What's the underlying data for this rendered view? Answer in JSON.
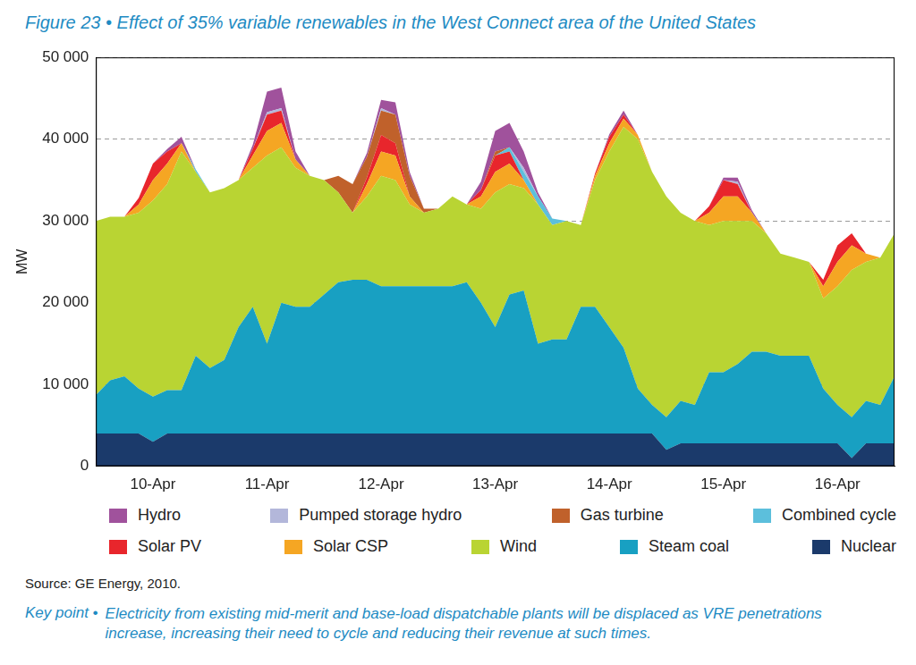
{
  "chart_data": {
    "type": "area",
    "title": "Figure 23 • Effect of 35% variable renewables in the West Connect area of the United States",
    "y_label": "MW",
    "source": "Source: GE Energy, 2010.",
    "note_label": "Key point •",
    "note": "Electricity from existing mid-merit and base-load dispatchable plants will be displaced as VRE penetrations increase, increasing their need to cycle and reducing their revenue at such times.",
    "stacked": true,
    "grid": true,
    "legend": "bottom",
    "ylim": [
      0,
      50000
    ],
    "yticks": [
      0,
      {
        "value": 10000,
        "label": "10 000"
      },
      {
        "value": 20000,
        "label": "20 000"
      },
      {
        "value": 30000,
        "label": "30 000"
      },
      {
        "value": 40000,
        "label": "40 000"
      },
      {
        "value": 50000,
        "label": "50 000"
      }
    ],
    "categories": [
      null,
      null,
      null,
      null,
      "10-Apr",
      null,
      null,
      null,
      null,
      null,
      null,
      null,
      "11-Apr",
      null,
      null,
      null,
      null,
      null,
      null,
      null,
      "12-Apr",
      null,
      null,
      null,
      null,
      null,
      null,
      null,
      "13-Apr",
      null,
      null,
      null,
      null,
      null,
      null,
      null,
      "14-Apr",
      null,
      null,
      null,
      null,
      null,
      null,
      null,
      "15-Apr",
      null,
      null,
      null,
      null,
      null,
      null,
      null,
      "16-Apr",
      null,
      null,
      null,
      null
    ],
    "series": [
      {
        "name": "Hydro",
        "color": "#a0529c",
        "values": [
          0,
          0,
          0,
          0,
          0,
          300,
          800,
          0,
          0,
          0,
          0,
          500,
          2500,
          2500,
          1000,
          0,
          0,
          0,
          0,
          500,
          1000,
          1500,
          500,
          0,
          0,
          0,
          0,
          1000,
          2500,
          3000,
          2000,
          500,
          0,
          0,
          0,
          0,
          300,
          500,
          0,
          0,
          0,
          0,
          0,
          0,
          300,
          500,
          300,
          0,
          0,
          0,
          0,
          0,
          0,
          0,
          0,
          0,
          0
        ]
      },
      {
        "name": "Pumped storage hydro",
        "color": "#b3b7da",
        "values": [
          0,
          0,
          0,
          0,
          0,
          0,
          0,
          0,
          0,
          0,
          0,
          0,
          300,
          300,
          0,
          0,
          0,
          0,
          0,
          0,
          300,
          0,
          0,
          0,
          0,
          0,
          0,
          0,
          0,
          0,
          500,
          0,
          0,
          0,
          0,
          0,
          0,
          0,
          0,
          0,
          0,
          0,
          0,
          0,
          0,
          300,
          0,
          0,
          0,
          0,
          0,
          0,
          0,
          0,
          0,
          0,
          0
        ]
      },
      {
        "name": "Gas turbine",
        "color": "#c0612b",
        "values": [
          0,
          0,
          0,
          0,
          0,
          0,
          0,
          0,
          0,
          0,
          0,
          0,
          0,
          0,
          0,
          0,
          0,
          2000,
          3500,
          2500,
          3000,
          3500,
          2500,
          500,
          0,
          0,
          0,
          0,
          500,
          0,
          0,
          0,
          0,
          0,
          0,
          0,
          0,
          0,
          0,
          0,
          0,
          0,
          0,
          0,
          0,
          0,
          0,
          0,
          0,
          0,
          0,
          0,
          0,
          0,
          0,
          0,
          0
        ]
      },
      {
        "name": "Combined cycle",
        "color": "#5cbfdc",
        "values": [
          0,
          0,
          0,
          0,
          0,
          0,
          0,
          300,
          0,
          0,
          0,
          0,
          0,
          0,
          0,
          0,
          0,
          0,
          0,
          0,
          0,
          0,
          0,
          0,
          0,
          0,
          0,
          0,
          0,
          500,
          1000,
          1000,
          800,
          0,
          0,
          0,
          0,
          0,
          0,
          0,
          0,
          0,
          0,
          0,
          0,
          0,
          0,
          0,
          0,
          0,
          0,
          0,
          0,
          0,
          0,
          0,
          0
        ]
      },
      {
        "name": "Solar PV",
        "color": "#e8262c",
        "values": [
          0,
          0,
          0,
          800,
          2000,
          1500,
          0,
          0,
          0,
          0,
          0,
          800,
          2000,
          1500,
          0,
          0,
          0,
          0,
          0,
          800,
          2000,
          1500,
          0,
          0,
          0,
          0,
          0,
          800,
          2000,
          1500,
          0,
          0,
          0,
          0,
          0,
          300,
          800,
          500,
          0,
          0,
          0,
          0,
          0,
          800,
          2000,
          1500,
          0,
          0,
          0,
          0,
          0,
          800,
          2000,
          1500,
          0,
          0,
          0
        ]
      },
      {
        "name": "Solar CSP",
        "color": "#f5a623",
        "values": [
          0,
          0,
          0,
          1000,
          2500,
          2500,
          1000,
          0,
          0,
          0,
          0,
          1500,
          3000,
          3000,
          1000,
          0,
          0,
          0,
          0,
          1500,
          3000,
          3000,
          1000,
          0,
          0,
          0,
          0,
          1500,
          2500,
          2500,
          1000,
          0,
          0,
          0,
          0,
          500,
          1000,
          1000,
          500,
          0,
          0,
          0,
          0,
          1500,
          3000,
          3000,
          1000,
          0,
          0,
          0,
          0,
          1500,
          3000,
          3000,
          1000,
          0,
          0
        ]
      },
      {
        "name": "Wind",
        "color": "#b9d433",
        "values": [
          21300,
          20000,
          19500,
          21500,
          24000,
          25200,
          29200,
          22500,
          21500,
          21000,
          18000,
          17000,
          23000,
          19000,
          17000,
          16000,
          14000,
          11000,
          8200,
          10200,
          13500,
          13000,
          10000,
          9000,
          9500,
          11000,
          9500,
          11500,
          16500,
          13500,
          12500,
          17000,
          14000,
          14500,
          10000,
          15500,
          21500,
          27000,
          30500,
          28500,
          27000,
          23000,
          22500,
          18000,
          18500,
          17500,
          16000,
          14500,
          12500,
          12000,
          11500,
          11000,
          14500,
          18000,
          17000,
          18000,
          17500
        ]
      },
      {
        "name": "Steam coal",
        "color": "#18a0c2",
        "values": [
          4700,
          6500,
          7000,
          5500,
          5500,
          5300,
          5300,
          9500,
          8000,
          9000,
          13000,
          15500,
          11000,
          16000,
          15500,
          15500,
          17000,
          18500,
          18800,
          18800,
          18000,
          18000,
          18000,
          18000,
          18000,
          18000,
          18500,
          16000,
          13000,
          17000,
          17500,
          11000,
          11500,
          11500,
          15500,
          15500,
          13000,
          10500,
          5500,
          3500,
          4000,
          5200,
          4700,
          8700,
          8700,
          9700,
          11200,
          11200,
          10700,
          10700,
          10700,
          6700,
          4700,
          5000,
          5200,
          4700,
          8200
        ]
      },
      {
        "name": "Nuclear",
        "color": "#1b3a6b",
        "values": [
          4000,
          4000,
          4000,
          4000,
          3000,
          4000,
          4000,
          4000,
          4000,
          4000,
          4000,
          4000,
          4000,
          4000,
          4000,
          4000,
          4000,
          4000,
          4000,
          4000,
          4000,
          4000,
          4000,
          4000,
          4000,
          4000,
          4000,
          4000,
          4000,
          4000,
          4000,
          4000,
          4000,
          4000,
          4000,
          4000,
          4000,
          4000,
          4000,
          4000,
          2000,
          2800,
          2800,
          2800,
          2800,
          2800,
          2800,
          2800,
          2800,
          2800,
          2800,
          2800,
          2800,
          1000,
          2800,
          2800,
          2800
        ]
      }
    ]
  }
}
